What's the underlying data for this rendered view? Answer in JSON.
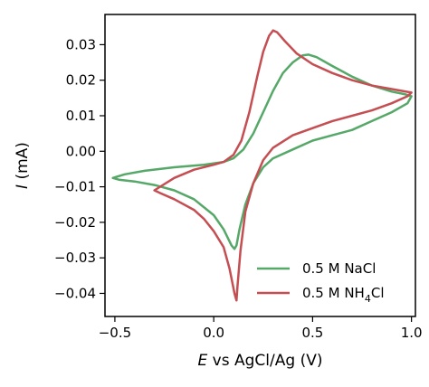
{
  "chart_data": {
    "type": "line",
    "title": "",
    "xlabel_italic": "E",
    "xlabel_rest": " vs AgCl/Ag (V)",
    "ylabel_italic": "I",
    "ylabel_rest": " (mA)",
    "xlim": [
      -0.55,
      1.02
    ],
    "ylim": [
      -0.0465,
      0.0385
    ],
    "xticks": [
      -0.5,
      0.0,
      0.5,
      1.0
    ],
    "xtick_labels": [
      "−0.5",
      "0.0",
      "0.5",
      "1.0"
    ],
    "yticks": [
      -0.04,
      -0.03,
      -0.02,
      -0.01,
      0.0,
      0.01,
      0.02,
      0.03
    ],
    "ytick_labels": [
      "−0.04",
      "−0.03",
      "−0.02",
      "−0.01",
      "0.00",
      "0.01",
      "0.02",
      "0.03"
    ],
    "grid": false,
    "legend_position": "lower-right",
    "series": [
      {
        "name": "0.5 M NaCl",
        "legend_main": "0.5 M NaCl",
        "legend_sub": "",
        "legend_tail": "",
        "color": "#55a868",
        "points": [
          [
            -0.51,
            -0.0075
          ],
          [
            -0.45,
            -0.0065
          ],
          [
            -0.35,
            -0.0055
          ],
          [
            -0.2,
            -0.0045
          ],
          [
            -0.05,
            -0.0038
          ],
          [
            0.05,
            -0.003
          ],
          [
            0.1,
            -0.002
          ],
          [
            0.15,
            0.0005
          ],
          [
            0.2,
            0.005
          ],
          [
            0.25,
            0.011
          ],
          [
            0.3,
            0.017
          ],
          [
            0.35,
            0.022
          ],
          [
            0.4,
            0.025
          ],
          [
            0.45,
            0.027
          ],
          [
            0.48,
            0.0272
          ],
          [
            0.52,
            0.0265
          ],
          [
            0.6,
            0.024
          ],
          [
            0.7,
            0.021
          ],
          [
            0.8,
            0.0185
          ],
          [
            0.9,
            0.0168
          ],
          [
            0.97,
            0.016
          ],
          [
            1.0,
            0.0155
          ],
          [
            0.98,
            0.0135
          ],
          [
            0.9,
            0.011
          ],
          [
            0.8,
            0.0085
          ],
          [
            0.7,
            0.006
          ],
          [
            0.6,
            0.0045
          ],
          [
            0.5,
            0.003
          ],
          [
            0.4,
            0.0005
          ],
          [
            0.3,
            -0.002
          ],
          [
            0.25,
            -0.0045
          ],
          [
            0.2,
            -0.009
          ],
          [
            0.16,
            -0.015
          ],
          [
            0.13,
            -0.022
          ],
          [
            0.115,
            -0.0265
          ],
          [
            0.105,
            -0.0275
          ],
          [
            0.09,
            -0.0265
          ],
          [
            0.05,
            -0.022
          ],
          [
            0.0,
            -0.018
          ],
          [
            -0.1,
            -0.0135
          ],
          [
            -0.2,
            -0.011
          ],
          [
            -0.3,
            -0.0095
          ],
          [
            -0.4,
            -0.0085
          ],
          [
            -0.48,
            -0.008
          ],
          [
            -0.51,
            -0.0075
          ]
        ]
      },
      {
        "name": "0.5 M NH4Cl",
        "legend_main": "0.5 M NH",
        "legend_sub": "4",
        "legend_tail": "Cl",
        "color": "#c44e52",
        "points": [
          [
            -0.3,
            -0.011
          ],
          [
            -0.2,
            -0.0075
          ],
          [
            -0.1,
            -0.0052
          ],
          [
            0.0,
            -0.0038
          ],
          [
            0.05,
            -0.003
          ],
          [
            0.1,
            -0.001
          ],
          [
            0.14,
            0.003
          ],
          [
            0.18,
            0.011
          ],
          [
            0.22,
            0.021
          ],
          [
            0.25,
            0.028
          ],
          [
            0.28,
            0.0325
          ],
          [
            0.3,
            0.034
          ],
          [
            0.32,
            0.0335
          ],
          [
            0.36,
            0.031
          ],
          [
            0.42,
            0.0275
          ],
          [
            0.5,
            0.0245
          ],
          [
            0.6,
            0.022
          ],
          [
            0.7,
            0.02
          ],
          [
            0.8,
            0.0185
          ],
          [
            0.9,
            0.0175
          ],
          [
            1.0,
            0.0165
          ],
          [
            0.98,
            0.0155
          ],
          [
            0.9,
            0.0135
          ],
          [
            0.8,
            0.0115
          ],
          [
            0.7,
            0.01
          ],
          [
            0.6,
            0.0085
          ],
          [
            0.5,
            0.0065
          ],
          [
            0.4,
            0.0045
          ],
          [
            0.3,
            0.001
          ],
          [
            0.25,
            -0.0025
          ],
          [
            0.2,
            -0.009
          ],
          [
            0.16,
            -0.017
          ],
          [
            0.135,
            -0.028
          ],
          [
            0.12,
            -0.038
          ],
          [
            0.115,
            -0.042
          ],
          [
            0.105,
            -0.04
          ],
          [
            0.08,
            -0.033
          ],
          [
            0.05,
            -0.027
          ],
          [
            0.0,
            -0.0225
          ],
          [
            -0.05,
            -0.019
          ],
          [
            -0.1,
            -0.0165
          ],
          [
            -0.2,
            -0.0135
          ],
          [
            -0.27,
            -0.0118
          ],
          [
            -0.3,
            -0.011
          ]
        ]
      }
    ]
  }
}
